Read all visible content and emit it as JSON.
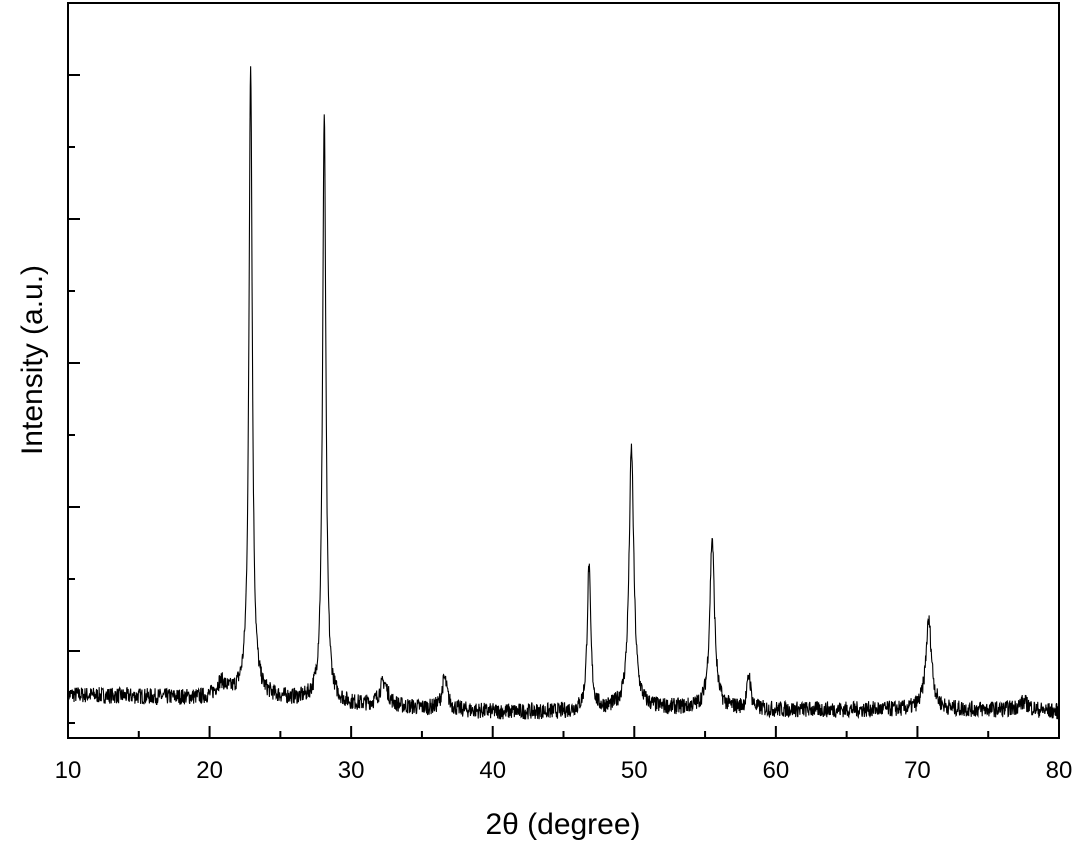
{
  "chart_data": {
    "type": "line",
    "title": "",
    "xlabel": "2θ (degree)",
    "ylabel": "Intensity (a.u.)",
    "xlim": [
      10,
      80
    ],
    "ylim": [
      0,
      1
    ],
    "x_ticks": [
      10,
      20,
      30,
      40,
      50,
      60,
      70,
      80
    ],
    "x_tick_labels": [
      "10",
      "20",
      "30",
      "40",
      "50",
      "60",
      "70",
      "80"
    ],
    "y_tick_labels_shown": false,
    "grid": false,
    "legend": "none",
    "line_color": "#000000",
    "series": [
      {
        "baseline": [
          [
            10,
            0.04
          ],
          [
            20,
            0.035
          ],
          [
            22,
            0.04
          ],
          [
            30,
            0.025
          ],
          [
            35,
            0.02
          ],
          [
            40,
            0.015
          ],
          [
            45,
            0.015
          ],
          [
            50,
            0.02
          ],
          [
            55,
            0.02
          ],
          [
            60,
            0.018
          ],
          [
            70,
            0.018
          ],
          [
            75,
            0.018
          ],
          [
            80,
            0.015
          ]
        ],
        "peaks": [
          {
            "x": 20.8,
            "height": 0.02,
            "width": 0.8
          },
          {
            "x": 22.9,
            "height": 0.93,
            "width": 0.28
          },
          {
            "x": 28.1,
            "height": 0.86,
            "width": 0.28
          },
          {
            "x": 32.3,
            "height": 0.035,
            "width": 0.7
          },
          {
            "x": 36.6,
            "height": 0.045,
            "width": 0.45
          },
          {
            "x": 46.8,
            "height": 0.21,
            "width": 0.3
          },
          {
            "x": 49.8,
            "height": 0.38,
            "width": 0.4
          },
          {
            "x": 55.5,
            "height": 0.25,
            "width": 0.4
          },
          {
            "x": 58.1,
            "height": 0.05,
            "width": 0.3
          },
          {
            "x": 70.8,
            "height": 0.13,
            "width": 0.5
          },
          {
            "x": 77.5,
            "height": 0.012,
            "width": 1.0
          }
        ]
      }
    ]
  }
}
